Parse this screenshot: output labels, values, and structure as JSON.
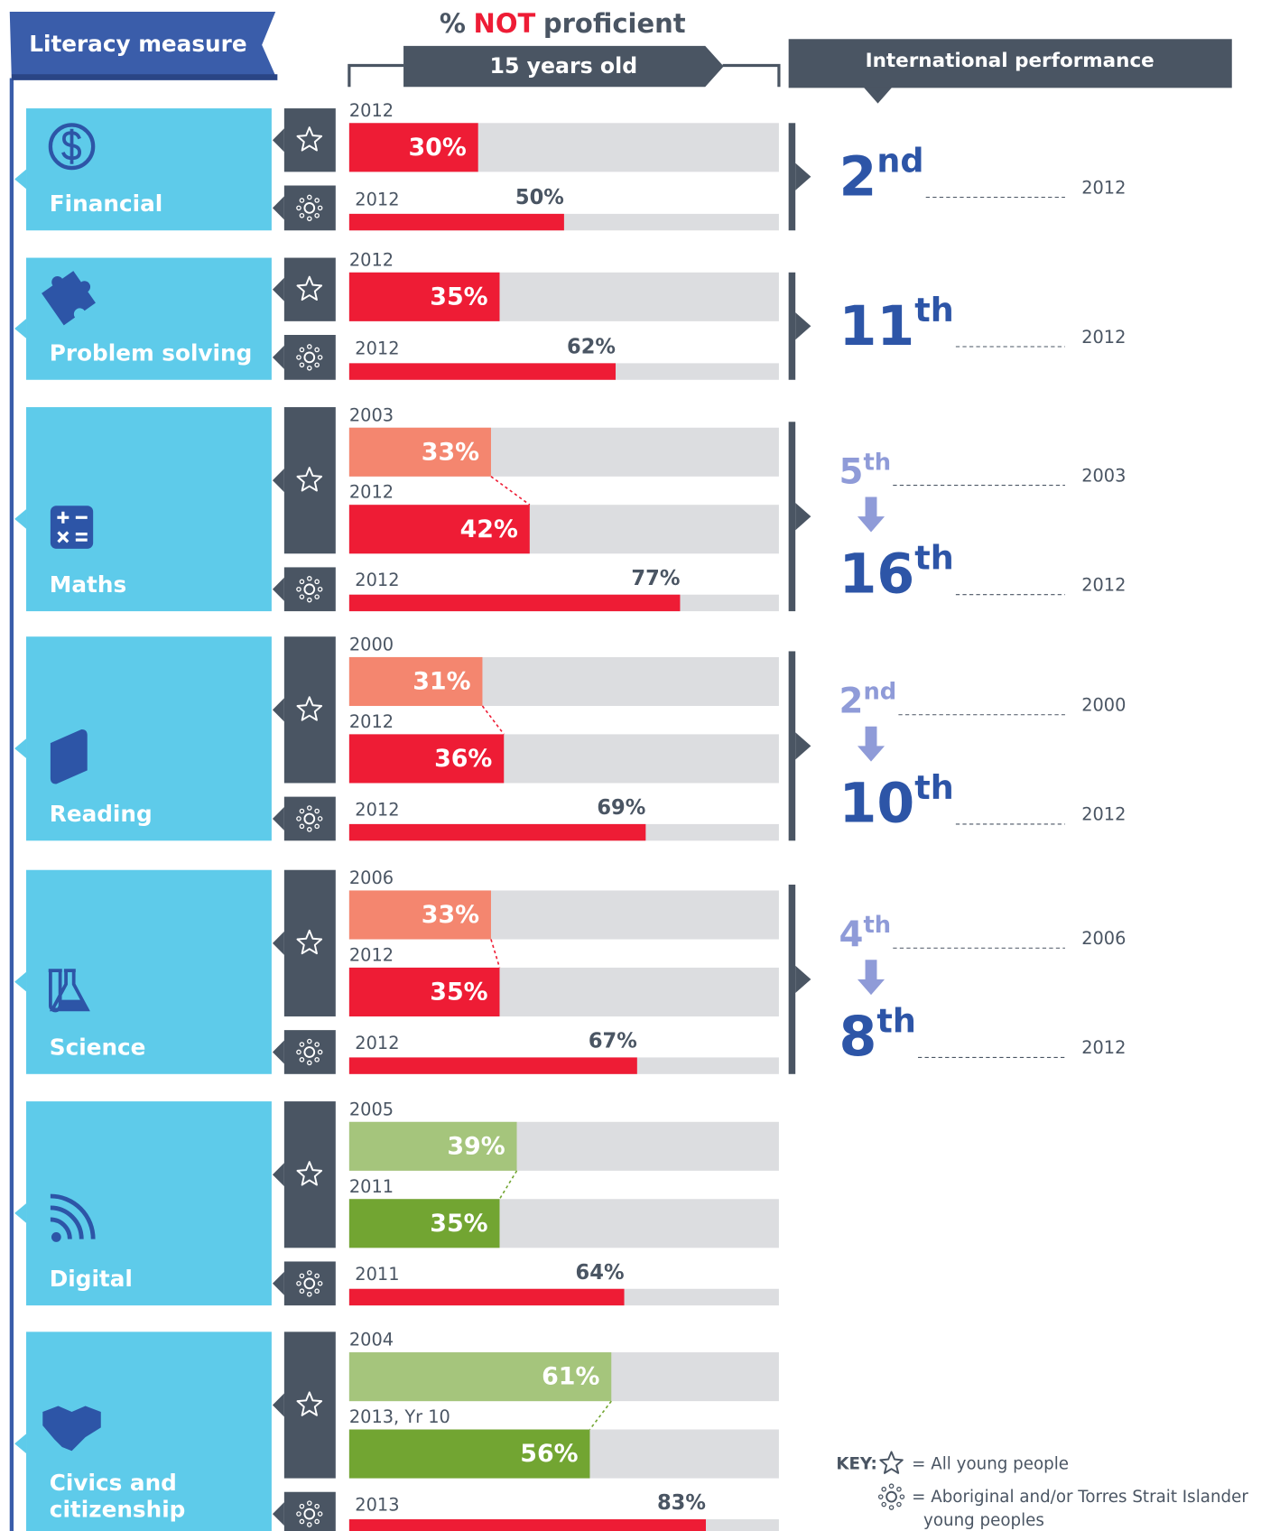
{
  "header": {
    "measure_label": "Literacy measure",
    "title_parts": [
      "%",
      "NOT",
      "proficient"
    ],
    "subtitle": "15 years old",
    "performance_label": "International performance"
  },
  "xlim": [
    0,
    100
  ],
  "measures": [
    {
      "name_lines": [
        "Financial"
      ],
      "all": {
        "years": [
          "2012"
        ],
        "values": [
          30
        ],
        "value_labels": [
          "30%"
        ],
        "colors": [
          "#ee1c35"
        ]
      },
      "indigenous": {
        "year": "2012",
        "value": 50,
        "value_label": "50%",
        "color": "#ee1c35"
      },
      "ranks": [
        {
          "number": "2",
          "suffix": "nd",
          "year": "2012"
        }
      ]
    },
    {
      "name_lines": [
        "Problem solving"
      ],
      "all": {
        "years": [
          "2012"
        ],
        "values": [
          35
        ],
        "value_labels": [
          "35%"
        ],
        "colors": [
          "#ee1c35"
        ]
      },
      "indigenous": {
        "year": "2012",
        "value": 62,
        "value_label": "62%",
        "color": "#ee1c35"
      },
      "ranks": [
        {
          "number": "11",
          "suffix": "th",
          "year": "2012"
        }
      ]
    },
    {
      "name_lines": [
        "Maths"
      ],
      "all": {
        "years": [
          "2003",
          "2012"
        ],
        "values": [
          33,
          42
        ],
        "value_labels": [
          "33%",
          "42%"
        ],
        "colors": [
          "#f4866f",
          "#ee1c35"
        ]
      },
      "indigenous": {
        "year": "2012",
        "value": 77,
        "value_label": "77%",
        "color": "#ee1c35"
      },
      "ranks": [
        {
          "number": "5",
          "suffix": "th",
          "year": "2003"
        },
        {
          "number": "16",
          "suffix": "th",
          "year": "2012"
        }
      ]
    },
    {
      "name_lines": [
        "Reading"
      ],
      "all": {
        "years": [
          "2000",
          "2012"
        ],
        "values": [
          31,
          36
        ],
        "value_labels": [
          "31%",
          "36%"
        ],
        "colors": [
          "#f4866f",
          "#ee1c35"
        ]
      },
      "indigenous": {
        "year": "2012",
        "value": 69,
        "value_label": "69%",
        "color": "#ee1c35"
      },
      "ranks": [
        {
          "number": "2",
          "suffix": "nd",
          "year": "2000"
        },
        {
          "number": "10",
          "suffix": "th",
          "year": "2012"
        }
      ]
    },
    {
      "name_lines": [
        "Science"
      ],
      "all": {
        "years": [
          "2006",
          "2012"
        ],
        "values": [
          33,
          35
        ],
        "value_labels": [
          "33%",
          "35%"
        ],
        "colors": [
          "#f4866f",
          "#ee1c35"
        ]
      },
      "indigenous": {
        "year": "2012",
        "value": 67,
        "value_label": "67%",
        "color": "#ee1c35"
      },
      "ranks": [
        {
          "number": "4",
          "suffix": "th",
          "year": "2006"
        },
        {
          "number": "8",
          "suffix": "th",
          "year": "2012"
        }
      ]
    },
    {
      "name_lines": [
        "Digital"
      ],
      "all": {
        "years": [
          "2005",
          "2011"
        ],
        "values": [
          39,
          35
        ],
        "value_labels": [
          "39%",
          "35%"
        ],
        "colors": [
          "#a5c57c",
          "#72a532"
        ]
      },
      "indigenous": {
        "year": "2011",
        "value": 64,
        "value_label": "64%",
        "color": "#ee1c35"
      },
      "ranks": []
    },
    {
      "name_lines": [
        "Civics and",
        "citizenship"
      ],
      "all": {
        "years": [
          "2004",
          "2013, Yr 10"
        ],
        "values": [
          61,
          56
        ],
        "value_labels": [
          "61%",
          "56%"
        ],
        "colors": [
          "#a5c57c",
          "#72a532"
        ]
      },
      "indigenous": {
        "year": "2013",
        "value": 83,
        "value_label": "83%",
        "color": "#ee1c35"
      },
      "ranks": []
    }
  ],
  "key": {
    "title": "KEY:",
    "items": [
      {
        "lines": [
          "= All young people"
        ]
      },
      {
        "lines": [
          "= Aboriginal and/or Torres Strait Islander",
          "young peoples"
        ]
      }
    ]
  }
}
